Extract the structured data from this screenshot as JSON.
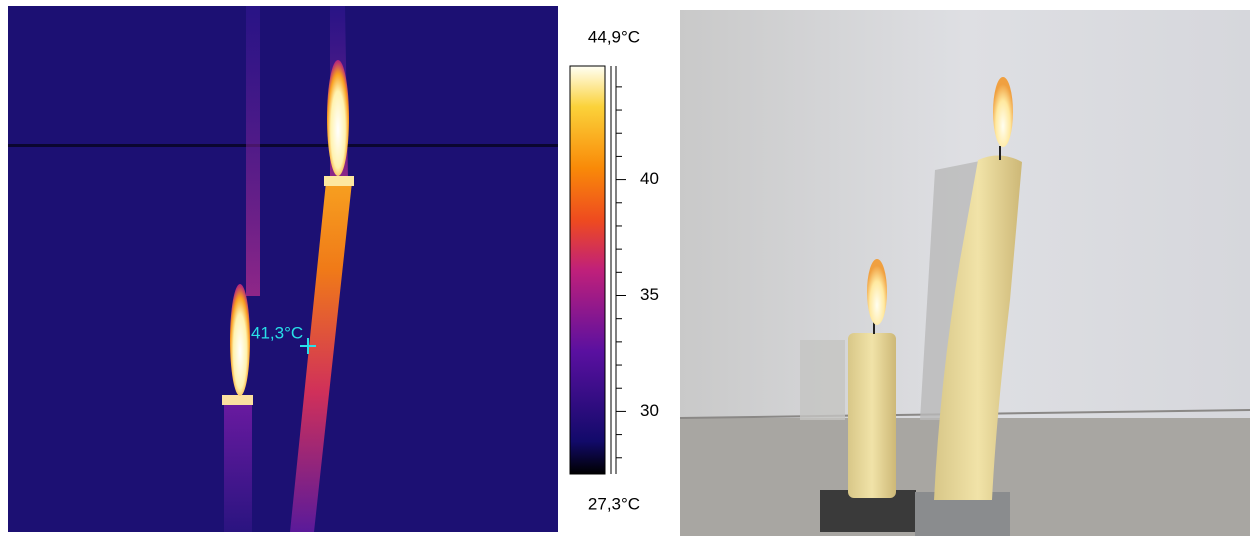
{
  "thermal_image": {
    "spot_label": "41,3°C"
  },
  "color_scale": {
    "max": {
      "value": 44.9,
      "label": "44,9°C"
    },
    "min": {
      "value": 27.3,
      "label": "27,3°C"
    },
    "ticks": [
      30,
      35,
      40
    ],
    "minor_ticks": [
      28,
      29,
      31,
      32,
      33,
      34,
      36,
      37,
      38,
      39,
      41,
      42,
      43,
      44
    ]
  }
}
